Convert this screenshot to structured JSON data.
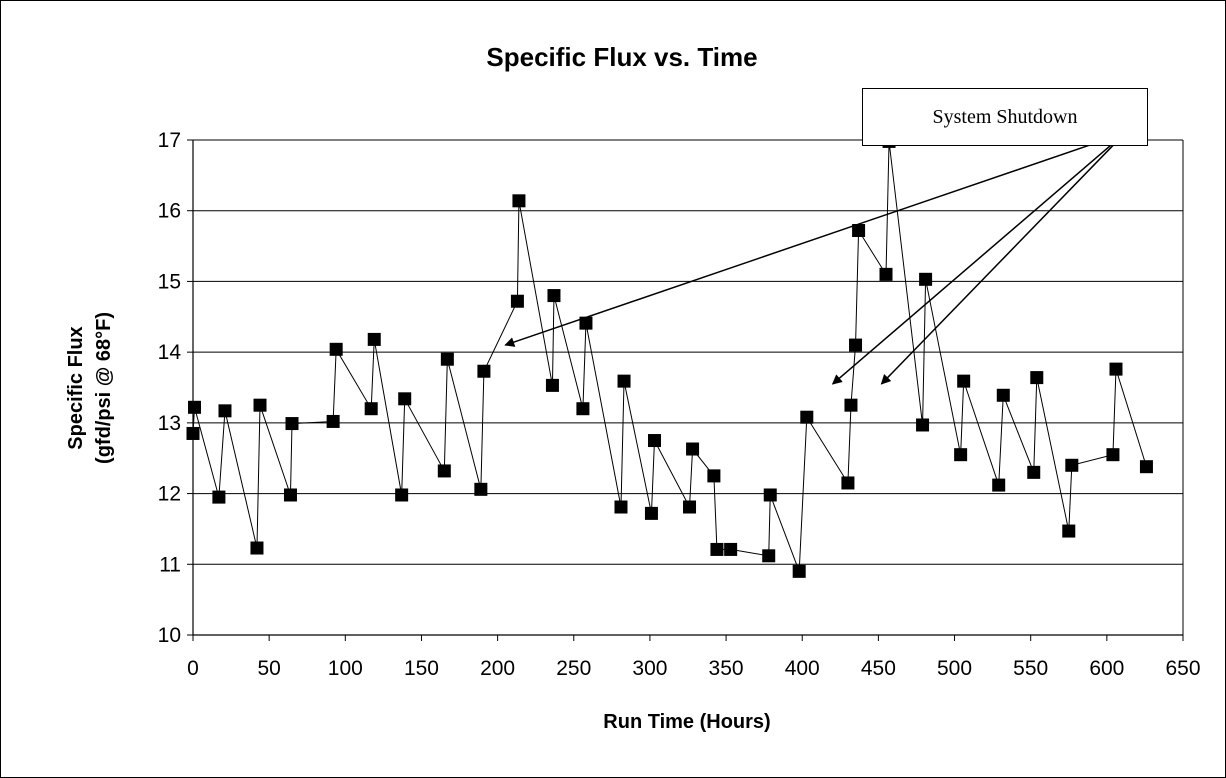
{
  "chart_data": {
    "type": "scatter",
    "title": "Specific Flux vs. Time",
    "xlabel": "Run Time (Hours)",
    "ylabel_line1": "Specific Flux",
    "ylabel_line2": "(gfd/psi @ 68°F)",
    "xlim": [
      0,
      650
    ],
    "ylim": [
      10,
      17
    ],
    "x_ticks": [
      0,
      50,
      100,
      150,
      200,
      250,
      300,
      350,
      400,
      450,
      500,
      550,
      600,
      650
    ],
    "y_ticks": [
      10,
      11,
      12,
      13,
      14,
      15,
      16,
      17
    ],
    "grid": "horizontal",
    "marker": "square",
    "line_connected": true,
    "x": [
      0,
      1,
      17,
      21,
      42,
      44,
      64,
      65,
      92,
      94,
      117,
      119,
      137,
      139,
      165,
      167,
      189,
      191,
      213,
      214,
      236,
      237,
      256,
      258,
      281,
      283,
      301,
      303,
      326,
      328,
      342,
      344,
      353,
      378,
      379,
      398,
      403,
      430,
      432,
      435,
      437,
      455,
      457,
      479,
      481,
      504,
      506,
      529,
      532,
      552,
      554,
      575,
      577,
      604,
      606,
      626
    ],
    "y": [
      12.85,
      13.22,
      11.95,
      13.17,
      11.23,
      13.25,
      11.98,
      12.99,
      13.02,
      14.04,
      13.2,
      14.18,
      11.98,
      13.34,
      12.32,
      13.9,
      12.06,
      13.73,
      14.72,
      16.14,
      13.53,
      14.8,
      13.2,
      14.41,
      11.81,
      13.59,
      11.72,
      12.75,
      11.81,
      12.63,
      12.25,
      11.21,
      11.21,
      11.12,
      11.98,
      10.9,
      13.08,
      12.15,
      13.25,
      14.1,
      15.72,
      15.1,
      16.98,
      12.97,
      15.03,
      12.55,
      13.59,
      12.12,
      13.39,
      12.3,
      13.64,
      11.47,
      12.4,
      12.55,
      13.76,
      12.38
    ],
    "annotations": [
      {
        "text": "System Shutdown",
        "origin": [
          612,
          17.1
        ],
        "arrow_targets": [
          [
            205,
            14.1
          ],
          [
            420,
            13.55
          ],
          [
            452,
            13.55
          ]
        ]
      }
    ]
  }
}
